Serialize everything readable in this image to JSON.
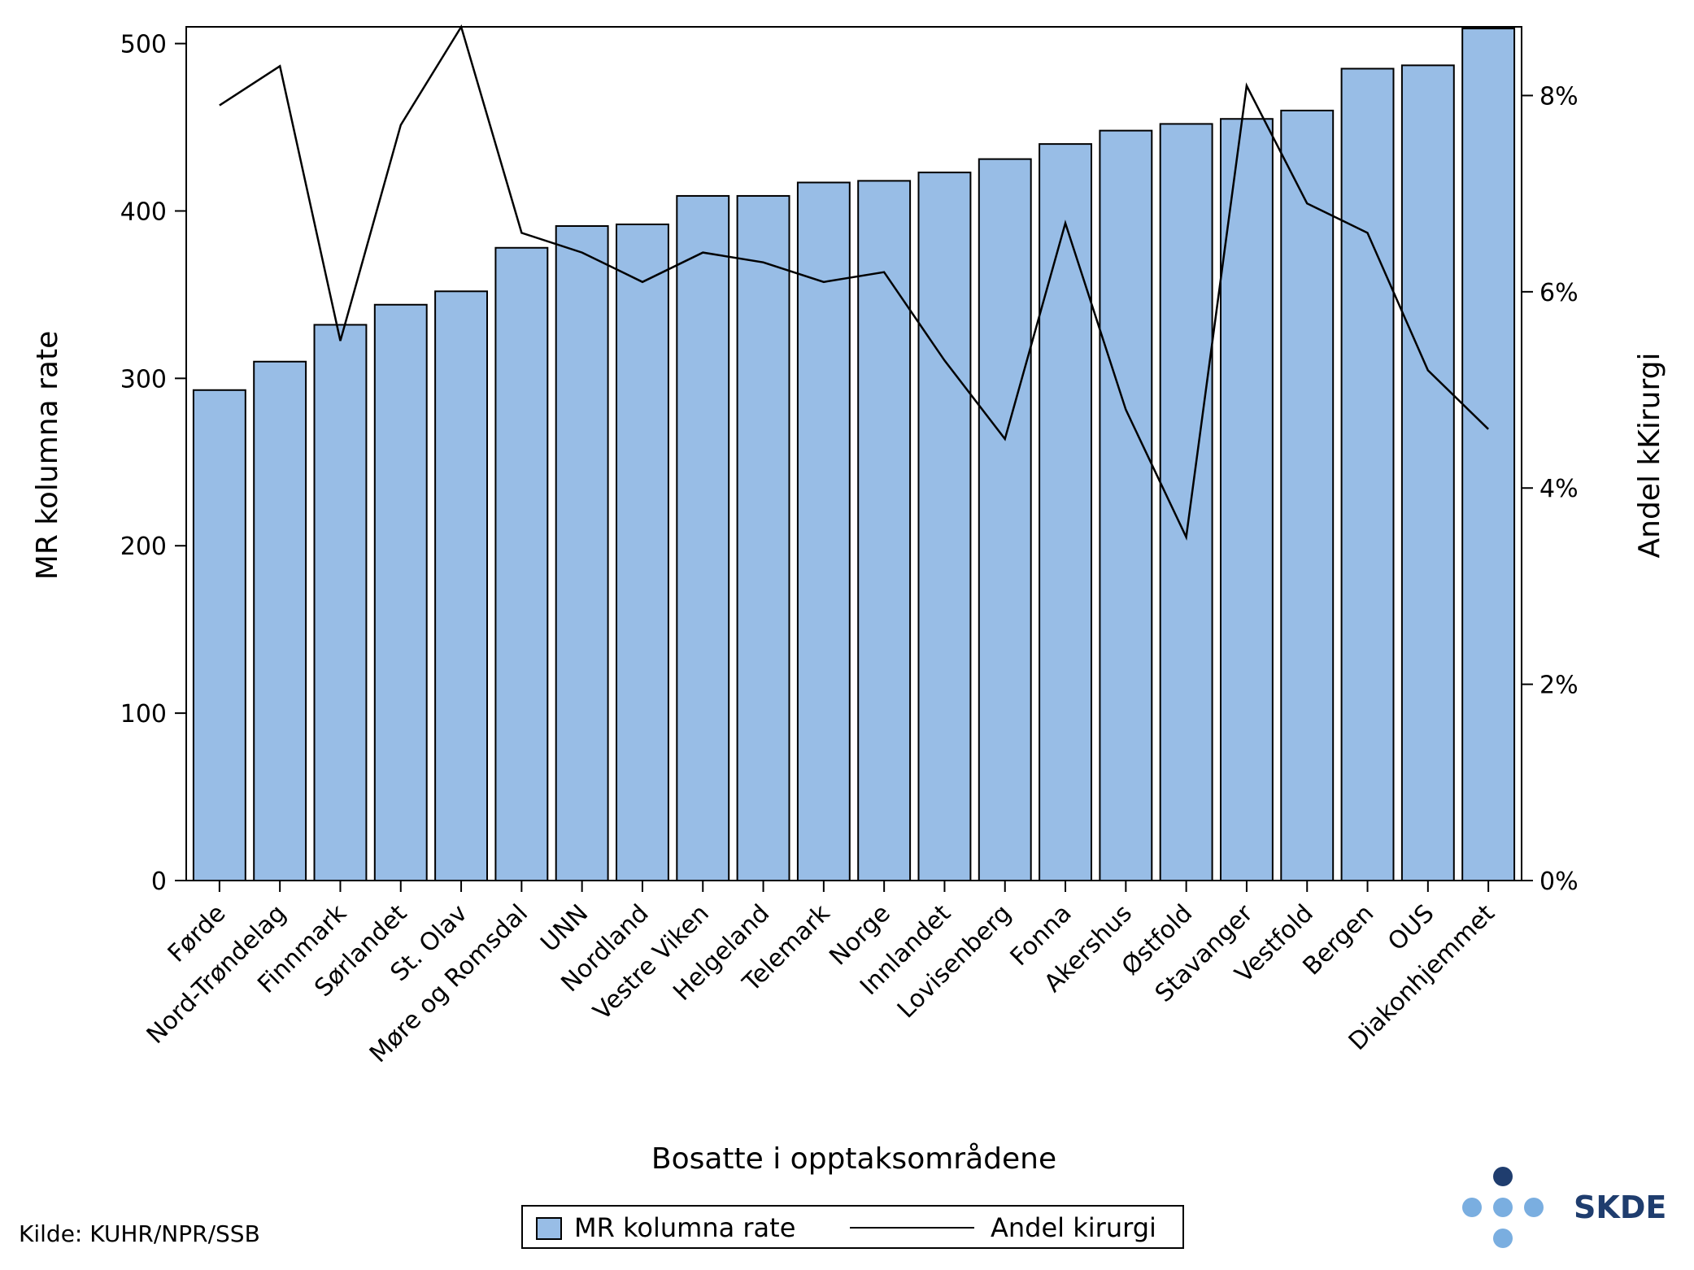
{
  "chart_data": {
    "type": "bar",
    "categories": [
      "Førde",
      "Nord-Trøndelag",
      "Finnmark",
      "Sørlandet",
      "St. Olav",
      "Møre og Romsdal",
      "UNN",
      "Nordland",
      "Vestre Viken",
      "Helgeland",
      "Telemark",
      "Norge",
      "Innlandet",
      "Lovisenberg",
      "Fonna",
      "Akershus",
      "Østfold",
      "Stavanger",
      "Vestfold",
      "Bergen",
      "OUS",
      "Diakonhjemmet"
    ],
    "series": [
      {
        "name": "MR kolumna rate",
        "type": "bar",
        "axis": "left",
        "values": [
          293,
          310,
          332,
          344,
          352,
          378,
          391,
          392,
          409,
          409,
          417,
          418,
          423,
          431,
          440,
          448,
          452,
          455,
          460,
          485,
          487,
          509
        ]
      },
      {
        "name": "Andel kirurgi",
        "type": "line",
        "axis": "right",
        "unit": "%",
        "values": [
          7.9,
          8.3,
          5.5,
          7.7,
          8.7,
          6.6,
          6.4,
          6.1,
          6.4,
          6.3,
          6.1,
          6.2,
          5.3,
          4.5,
          6.7,
          4.8,
          3.5,
          8.1,
          6.9,
          6.6,
          5.2,
          4.6
        ]
      }
    ],
    "xlabel": "Bosatte i opptaksområdene",
    "ylabel": "MR kolumna rate",
    "y2label": "Andel kKirurgi",
    "ylim": [
      0,
      510
    ],
    "y2lim": [
      0,
      8.7
    ],
    "yticks": [
      "0",
      "100",
      "200",
      "300",
      "400",
      "500"
    ],
    "y2ticks": [
      "0%",
      "2%",
      "4%",
      "6%",
      "8%"
    ],
    "legend_position": "bottom-center",
    "grid": false,
    "colors": {
      "bar_fill": "#98bde6",
      "bar_stroke": "#000000",
      "line": "#000000"
    }
  },
  "footer": {
    "source": "Kilde: KUHR/NPR/SSB",
    "logo_text": "SKDE",
    "logo_colors": {
      "dark": "#1f3d6e",
      "light": "#7aaee0"
    }
  }
}
